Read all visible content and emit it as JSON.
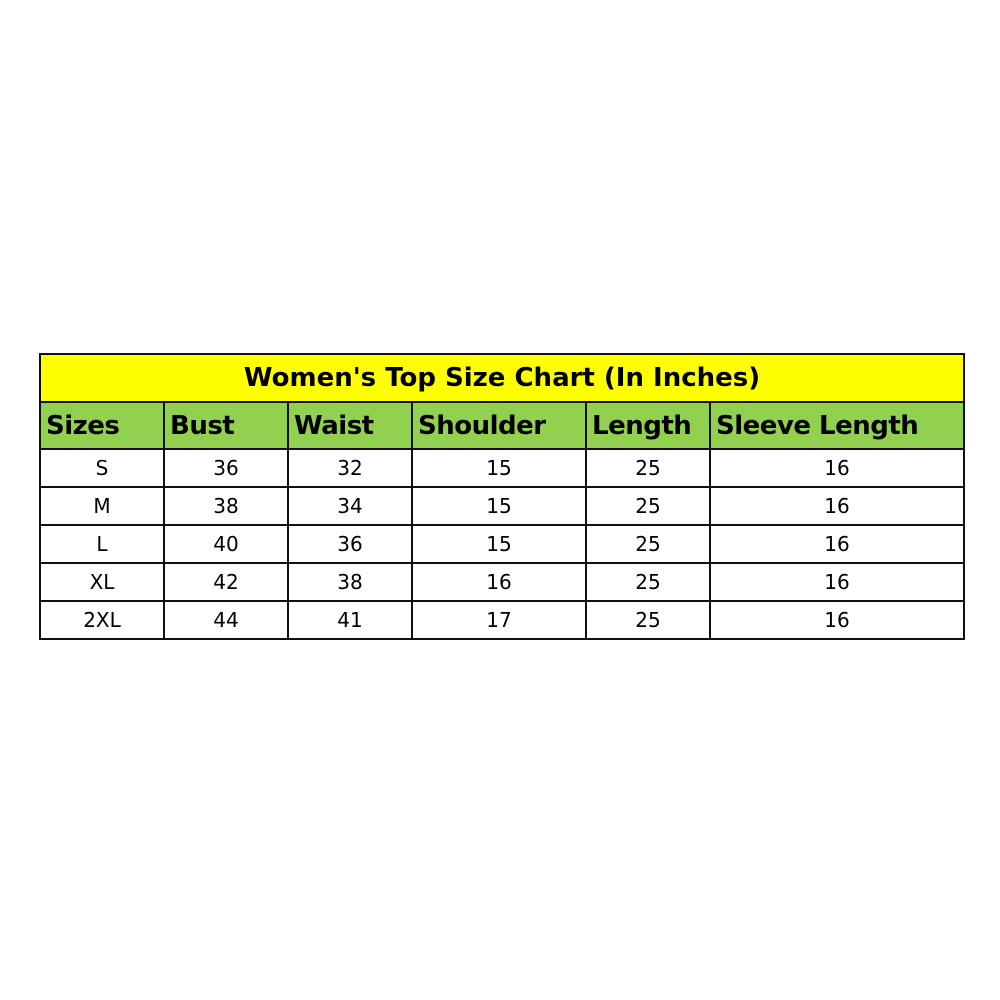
{
  "title": "Women's Top Size Chart (In Inches)",
  "colors": {
    "title_bg": "#ffff00",
    "header_bg": "#92d050"
  },
  "headers": [
    "Sizes",
    "Bust",
    "Waist",
    "Shoulder",
    "Length",
    "Sleeve Length"
  ],
  "rows": [
    [
      "S",
      "36",
      "32",
      "15",
      "25",
      "16"
    ],
    [
      "M",
      "38",
      "34",
      "15",
      "25",
      "16"
    ],
    [
      "L",
      "40",
      "36",
      "15",
      "25",
      "16"
    ],
    [
      "XL",
      "42",
      "38",
      "16",
      "25",
      "16"
    ],
    [
      "2XL",
      "44",
      "41",
      "17",
      "25",
      "16"
    ]
  ]
}
